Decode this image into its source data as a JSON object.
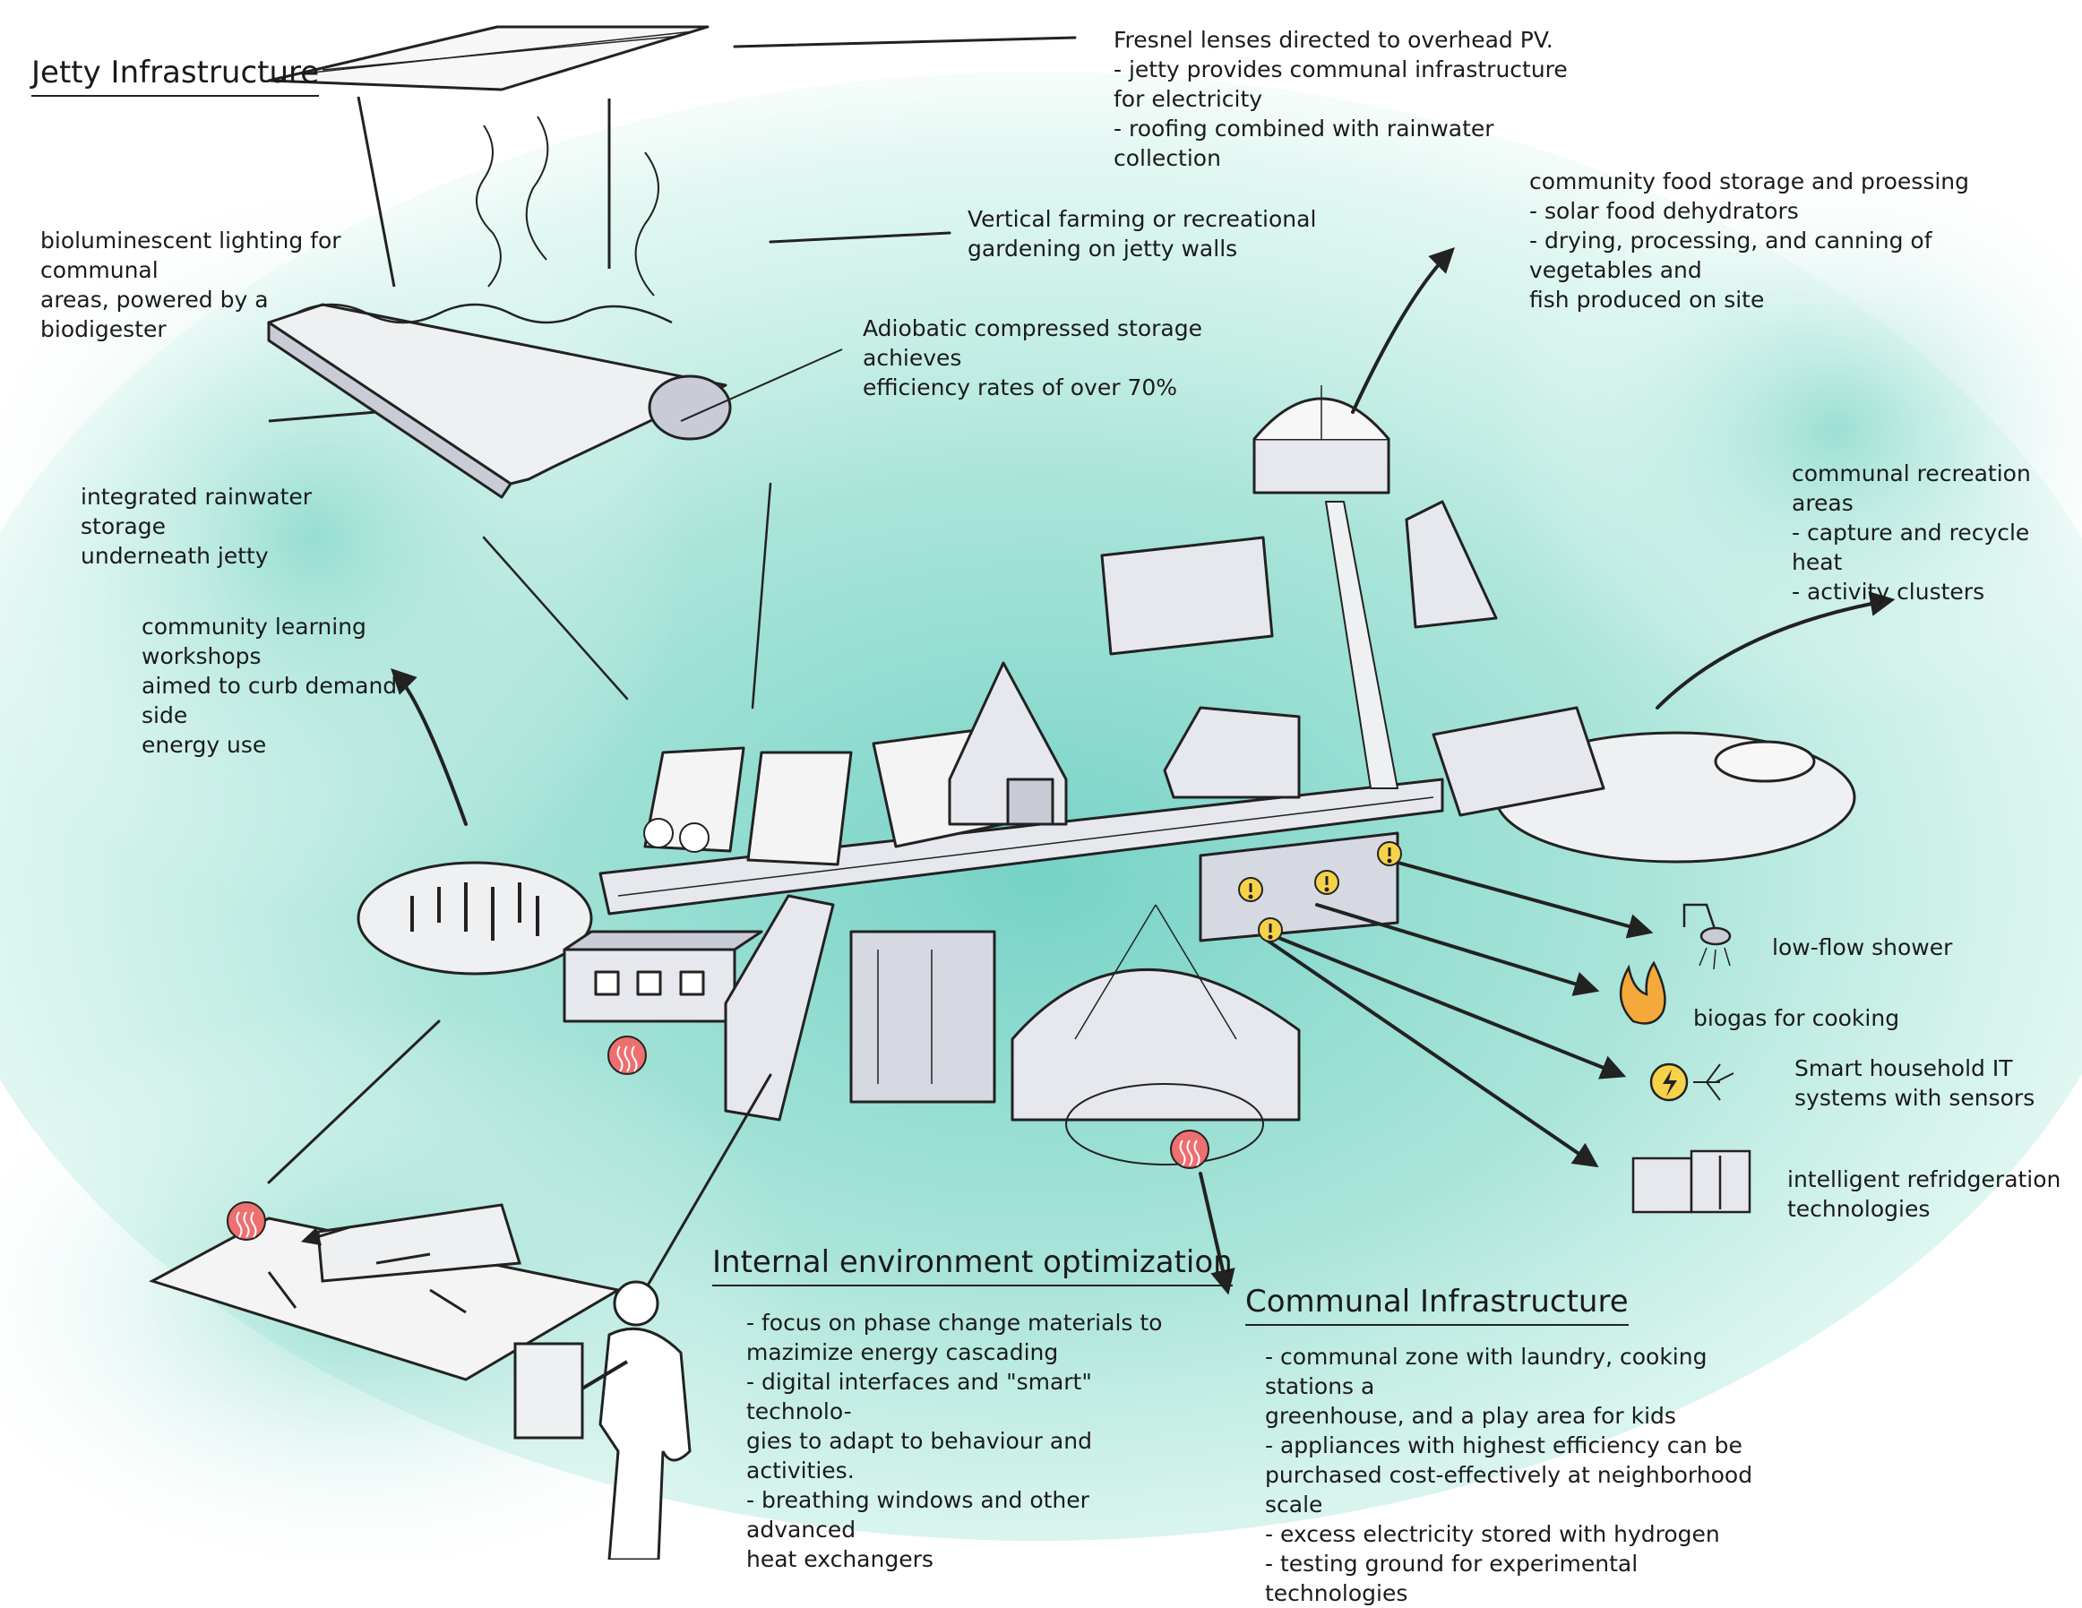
{
  "headings": {
    "jetty": "Jetty Infrastructure",
    "internal": "Internal environment optimization",
    "communal": "Communal Infrastructure"
  },
  "annotations": {
    "fresnel": "Fresnel lenses directed to overhead PV.\n- jetty provides communal infrastructure for electricity\n- roofing combined with rainwater collection",
    "bioluminescent": "bioluminescent lighting for communal\nareas, powered by a biodigester",
    "vertical_farming": "Vertical farming or recreational\ngardening on jetty walls",
    "adiabatic": "Adiobatic compressed storage achieves\nefficiency rates of over 70%",
    "rainwater": "integrated rainwater storage\nunderneath jetty",
    "food_storage": "community food storage and proessing\n- solar food dehydrators\n- drying, processing, and canning of vegetables and\nfish produced on site",
    "recreation": "communal recreation areas\n- capture and recycle heat\n- activity clusters",
    "workshops": "community learning workshops\naimed to curb demand-side\nenergy use",
    "shower": "low-flow shower",
    "biogas": "biogas for cooking",
    "smart_it": "Smart household IT\nsystems with sensors",
    "refrigeration": "intelligent refridgeration\ntechnologies",
    "internal_list": "- focus on phase change materials to\nmazimize energy cascading\n- digital interfaces and \"smart\" technolo-\ngies to adapt to behaviour and activities.\n- breathing windows and other advanced\nheat exchangers",
    "communal_list": "- communal zone with laundry, cooking stations a\ngreenhouse, and a play area for kids\n- appliances with highest efficiency can be\npurchased cost-effectively at neighborhood scale\n- excess electricity stored with hydrogen\n- testing ground for experimental technologies"
  },
  "icons": {
    "heat": "heat-wave-icon",
    "alert": "exclamation-alert-icon",
    "shower": "shower-head-icon",
    "flame": "flame-icon",
    "electric": "lightning-bolt-icon",
    "fridge": "refrigerator-icon",
    "person": "person-silhouette-icon"
  },
  "colors": {
    "background_wash": "#8fdccd",
    "wash_deep": "#6fd0c4",
    "building_fill": "#e6e8ee",
    "shadow_fill": "#c9ccd6",
    "heat_red": "#ee6f6f",
    "alert_yellow": "#f5d24a",
    "flame_orange": "#f4a93a",
    "line": "#222222"
  }
}
